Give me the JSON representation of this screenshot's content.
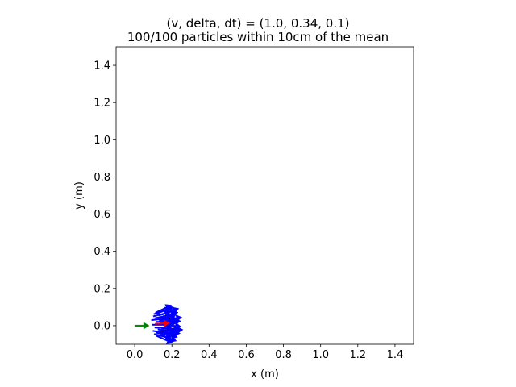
{
  "chart_data": {
    "type": "scatter",
    "title": "(v, delta, dt) = (1.0, 0.34, 0.1)",
    "subtitle": "100/100 particles within 10cm of the mean",
    "xlabel": "x (m)",
    "ylabel": "y (m)",
    "xlim": [
      -0.1,
      1.5
    ],
    "ylim": [
      -0.1,
      1.5
    ],
    "x_ticks": [
      0.0,
      0.2,
      0.4,
      0.6,
      0.8,
      1.0,
      1.2,
      1.4
    ],
    "y_ticks": [
      0.0,
      0.2,
      0.4,
      0.6,
      0.8,
      1.0,
      1.2,
      1.4
    ],
    "x_tick_labels": [
      "0.0",
      "0.2",
      "0.4",
      "0.6",
      "0.8",
      "1.0",
      "1.2",
      "1.4"
    ],
    "y_tick_labels": [
      "0.0",
      "0.2",
      "0.4",
      "0.6",
      "0.8",
      "1.0",
      "1.2",
      "1.4"
    ],
    "grid": false,
    "particle_count": 100,
    "particle_color": "#0000ff",
    "initial_pose": {
      "x": 0.0,
      "y": 0.0,
      "heading_deg": 0,
      "color": "#008000"
    },
    "mean_pose": {
      "x": 0.11,
      "y": 0.01,
      "heading_deg": 3,
      "color": "#ff0000"
    },
    "particles": [
      {
        "x": 0.155,
        "y": -0.02,
        "h": -8
      },
      {
        "x": 0.17,
        "y": 0.015,
        "h": 5
      },
      {
        "x": 0.14,
        "y": 0.04,
        "h": 12
      },
      {
        "x": 0.18,
        "y": -0.035,
        "h": -4
      },
      {
        "x": 0.125,
        "y": 0.005,
        "h": 0
      },
      {
        "x": 0.16,
        "y": 0.055,
        "h": 18
      },
      {
        "x": 0.135,
        "y": -0.045,
        "h": -15
      },
      {
        "x": 0.19,
        "y": 0.03,
        "h": 9
      },
      {
        "x": 0.15,
        "y": 0.065,
        "h": 22
      },
      {
        "x": 0.175,
        "y": -0.015,
        "h": -2
      },
      {
        "x": 0.12,
        "y": 0.03,
        "h": 6
      },
      {
        "x": 0.165,
        "y": -0.05,
        "h": -20
      },
      {
        "x": 0.145,
        "y": 0.02,
        "h": 3
      },
      {
        "x": 0.185,
        "y": 0.005,
        "h": -6
      },
      {
        "x": 0.13,
        "y": 0.05,
        "h": 14
      },
      {
        "x": 0.158,
        "y": -0.03,
        "h": -10
      },
      {
        "x": 0.172,
        "y": 0.045,
        "h": 16
      },
      {
        "x": 0.138,
        "y": -0.01,
        "h": -3
      },
      {
        "x": 0.195,
        "y": -0.025,
        "h": 2
      },
      {
        "x": 0.148,
        "y": -0.055,
        "h": -24
      },
      {
        "x": 0.162,
        "y": 0.028,
        "h": 7
      },
      {
        "x": 0.128,
        "y": -0.028,
        "h": -9
      },
      {
        "x": 0.178,
        "y": 0.06,
        "h": 20
      },
      {
        "x": 0.152,
        "y": 0.008,
        "h": 1
      },
      {
        "x": 0.142,
        "y": 0.07,
        "h": 25
      },
      {
        "x": 0.168,
        "y": -0.04,
        "h": -13
      },
      {
        "x": 0.183,
        "y": 0.018,
        "h": 4
      },
      {
        "x": 0.133,
        "y": 0.062,
        "h": 19
      },
      {
        "x": 0.156,
        "y": 0.035,
        "h": 11
      },
      {
        "x": 0.147,
        "y": -0.038,
        "h": -12
      }
    ]
  }
}
